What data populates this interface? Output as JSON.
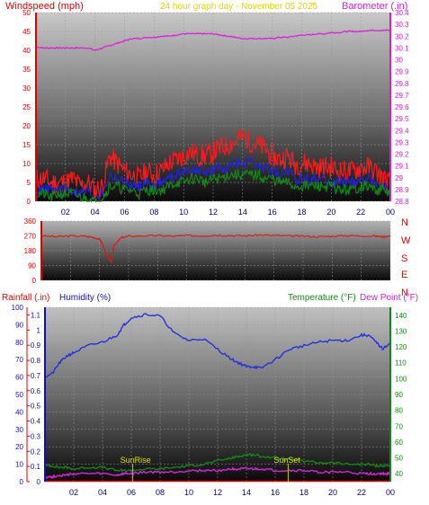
{
  "header": {
    "left_title": "Windspeed (mph)",
    "center_title": "24 hour graph day - November 05 2025",
    "right_title": "Barometer (.in)"
  },
  "colors": {
    "wind_gust": "#ff1a1a",
    "wind_avg": "#2222dd",
    "wind_low": "#118811",
    "barometer": "#dd22dd",
    "direction": "#e01818",
    "humidity": "#2233dd",
    "temperature": "#118811",
    "dew_point": "#dd22dd",
    "rain_axis": "#dd0000",
    "humidity_axis": "#1111aa",
    "temp_axis": "#118811",
    "title_yellow": "#e0d000"
  },
  "x_ticks": [
    "02",
    "04",
    "06",
    "08",
    "10",
    "12",
    "14",
    "16",
    "18",
    "20",
    "22",
    "00"
  ],
  "wind_panel": {
    "left_ticks": [
      "0",
      "5",
      "10",
      "15",
      "20",
      "25",
      "30",
      "35",
      "40",
      "45",
      "50"
    ],
    "right_ticks": [
      "28.8",
      "28.9",
      "29",
      "29.1",
      "29.2",
      "29.3",
      "29.4",
      "29.5",
      "29.6",
      "29.7",
      "29.8",
      "29.9",
      "30",
      "30.1",
      "30.2",
      "30.3",
      "30.4"
    ]
  },
  "direction_panel": {
    "left_ticks": [
      "0",
      "90",
      "180",
      "270",
      "360"
    ],
    "compass_labels": [
      "N",
      "W",
      "S",
      "E",
      "N"
    ]
  },
  "bottom_panel": {
    "rain_title": "Rainfall (.in)",
    "humidity_title": "Humidity (%)",
    "temp_title": "Temperature (°F)",
    "dew_title": "Dew Point (°F)",
    "rain_ticks": [
      "0",
      "0.1",
      "0.2",
      "0.3",
      "0.4",
      "0.5",
      "0.6",
      "0.7",
      "0.8",
      "0.9",
      "1",
      "1.1"
    ],
    "humidity_ticks": [
      "0",
      "10",
      "20",
      "30",
      "40",
      "50",
      "60",
      "70",
      "80",
      "90",
      "100"
    ],
    "temp_ticks": [
      "40",
      "50",
      "60",
      "70",
      "80",
      "90",
      "100",
      "110",
      "120",
      "130",
      "140"
    ],
    "sunrise_label": "SunRise",
    "sunset_label": "SunSet"
  },
  "chart_data": [
    {
      "type": "line",
      "x_hours": [
        0,
        0.5,
        1,
        1.5,
        2,
        2.5,
        3,
        3.5,
        4,
        4.5,
        5,
        5.5,
        6,
        6.5,
        7,
        7.5,
        8,
        8.5,
        9,
        9.5,
        10,
        10.5,
        11,
        11.5,
        12,
        12.5,
        13,
        13.5,
        14,
        14.5,
        15,
        15.5,
        16,
        16.5,
        17,
        17.5,
        18,
        18.5,
        19,
        19.5,
        20,
        20.5,
        21,
        21.5,
        22,
        22.5,
        23,
        23.5,
        24
      ],
      "series": [
        {
          "name": "gust_mph",
          "values": [
            6,
            6,
            5,
            5,
            5,
            6,
            4,
            5,
            3,
            4,
            12,
            10,
            8,
            7,
            6,
            8,
            7,
            8,
            10,
            11,
            12,
            13,
            12,
            12,
            13,
            14,
            15,
            16,
            17,
            16,
            15,
            14,
            12,
            11,
            12,
            10,
            10,
            10,
            9,
            9,
            9,
            8,
            8,
            8,
            9,
            9,
            8,
            6,
            5
          ]
        },
        {
          "name": "avg_mph",
          "values": [
            3,
            3,
            3,
            3,
            3,
            3,
            2,
            3,
            1,
            2,
            7,
            6,
            5,
            4,
            4,
            5,
            4,
            5,
            6,
            7,
            8,
            8,
            8,
            8,
            8,
            9,
            9,
            10,
            10,
            10,
            9,
            9,
            8,
            7,
            8,
            6,
            6,
            6,
            6,
            6,
            5,
            5,
            5,
            5,
            6,
            6,
            5,
            4,
            3
          ]
        },
        {
          "name": "low_mph",
          "values": [
            2,
            2,
            1,
            2,
            2,
            2,
            1,
            1,
            0,
            1,
            4,
            4,
            3,
            3,
            2,
            3,
            3,
            3,
            4,
            5,
            5,
            6,
            6,
            5,
            6,
            6,
            7,
            7,
            7,
            7,
            7,
            6,
            6,
            5,
            5,
            4,
            4,
            4,
            4,
            4,
            4,
            3,
            3,
            3,
            4,
            4,
            3,
            3,
            2
          ]
        },
        {
          "name": "barometer_in",
          "values": [
            30.11,
            30.1,
            30.1,
            30.1,
            30.1,
            30.1,
            30.1,
            30.1,
            30.08,
            30.1,
            30.12,
            30.14,
            30.16,
            30.18,
            30.18,
            30.19,
            30.19,
            30.2,
            30.2,
            30.21,
            30.22,
            30.22,
            30.22,
            30.22,
            30.22,
            30.21,
            30.2,
            30.19,
            30.18,
            30.18,
            30.18,
            30.18,
            30.18,
            30.19,
            30.19,
            30.2,
            30.21,
            30.21,
            30.22,
            30.22,
            30.23,
            30.23,
            30.24,
            30.24,
            30.24,
            30.25,
            30.25,
            30.25,
            30.25
          ]
        }
      ],
      "ylim": [
        0,
        50
      ],
      "y2lim": [
        28.8,
        30.4
      ]
    },
    {
      "type": "line",
      "x_hours": [
        0,
        1,
        2,
        3,
        3.5,
        4,
        4.2,
        4.5,
        4.8,
        5,
        5.5,
        6,
        7,
        8,
        9,
        10,
        11,
        12,
        13,
        14,
        15,
        16,
        17,
        18,
        19,
        20,
        21,
        22,
        23,
        23.5,
        24
      ],
      "series": [
        {
          "name": "wind_direction_deg",
          "values": [
            270,
            265,
            270,
            268,
            262,
            250,
            220,
            150,
            110,
            210,
            260,
            268,
            270,
            272,
            268,
            272,
            270,
            274,
            272,
            270,
            275,
            272,
            270,
            268,
            265,
            268,
            272,
            270,
            268,
            265,
            270
          ]
        }
      ],
      "ylim": [
        0,
        360
      ]
    },
    {
      "type": "line",
      "x_hours": [
        0,
        0.5,
        1,
        1.5,
        2,
        3,
        4,
        5,
        5.5,
        6,
        7,
        8,
        9,
        10,
        11,
        12,
        13,
        13.5,
        14,
        14.5,
        15,
        16,
        17,
        18,
        19,
        20,
        21,
        22,
        22.5,
        23,
        23.5,
        24
      ],
      "series": [
        {
          "name": "humidity_pct",
          "values": [
            60,
            62,
            68,
            72,
            74,
            78,
            80,
            84,
            90,
            94,
            96,
            95,
            85,
            81,
            82,
            76,
            70,
            68,
            66,
            66,
            65,
            70,
            76,
            78,
            80,
            81,
            81,
            84,
            84,
            80,
            76,
            80
          ]
        },
        {
          "name": "temperature_f",
          "values": [
            45,
            45,
            44,
            44,
            43,
            44,
            44,
            42,
            42,
            42,
            43,
            43,
            44,
            45,
            46,
            48,
            50,
            51,
            52,
            52,
            51,
            50,
            49,
            48,
            47,
            47,
            46,
            46,
            46,
            45,
            45,
            45
          ]
        },
        {
          "name": "dew_point_f",
          "values": [
            38,
            38,
            39,
            39,
            40,
            40,
            40,
            39,
            40,
            40,
            41,
            41,
            41,
            42,
            42,
            42,
            43,
            43,
            43,
            43,
            43,
            42,
            42,
            42,
            41,
            41,
            41,
            40,
            40,
            40,
            40,
            40
          ]
        },
        {
          "name": "rainfall_in",
          "values": [
            0,
            0,
            0,
            0,
            0,
            0,
            0,
            0,
            0,
            0,
            0,
            0,
            0,
            0,
            0,
            0,
            0,
            0,
            0,
            0,
            0,
            0,
            0,
            0,
            0,
            0,
            0,
            0,
            0,
            0,
            0,
            0
          ]
        }
      ],
      "y_humidity_lim": [
        0,
        100
      ],
      "y_rain_lim": [
        0,
        1.15
      ],
      "y_temp_lim": [
        35,
        145
      ],
      "sunrise_hour": 6.1,
      "sunset_hour": 16.9
    }
  ]
}
